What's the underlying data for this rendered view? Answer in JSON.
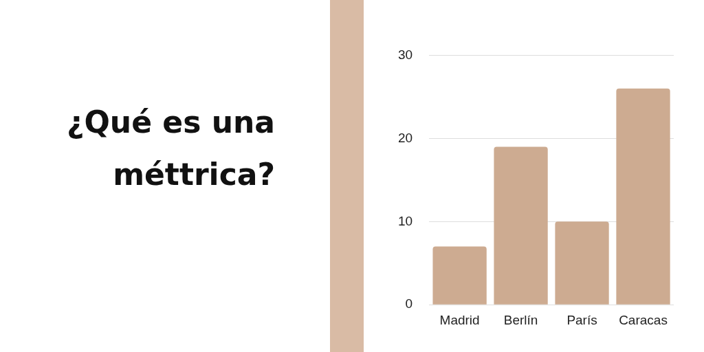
{
  "chart_data": {
    "type": "bar",
    "title": "¿Qué es una méttrica?",
    "categories": [
      "Madrid",
      "Berlín",
      "París",
      "Caracas"
    ],
    "values": [
      7,
      19,
      10,
      26
    ],
    "color": "#cdab91",
    "ylim": [
      0,
      30
    ],
    "yticks": [
      0,
      10,
      20,
      30
    ],
    "grid": "y",
    "legend": false
  }
}
